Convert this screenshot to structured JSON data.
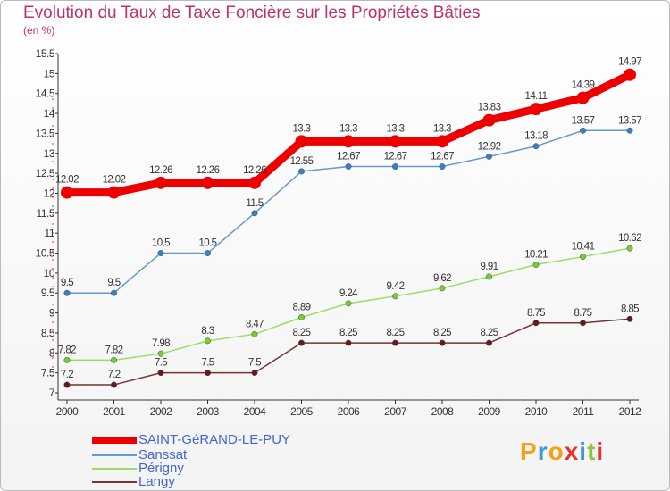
{
  "title": "Evolution du Taux de Taxe Foncière sur les Propriétés Bâties",
  "subtitle": "(en %)",
  "logo": {
    "text": "Proxiti",
    "letters": [
      "P",
      "r",
      "o",
      "x",
      "i",
      "t",
      "i"
    ],
    "colors": [
      "#f6a019",
      "#3a9ad9",
      "#f6a019",
      "#e8332a",
      "#3a9ad9",
      "#8bc53f",
      "#e8332a"
    ]
  },
  "chart_data": {
    "type": "line",
    "title": "Evolution du Taux de Taxe Foncière sur les Propriétés Bâties",
    "ylabel": "(en %)",
    "x": [
      "2000",
      "2001",
      "2002",
      "2003",
      "2004",
      "2005",
      "2006",
      "2007",
      "2008",
      "2009",
      "2010",
      "2011",
      "2012"
    ],
    "ylim": [
      7,
      15.5
    ],
    "yticks": [
      "7",
      "7.5",
      "8",
      "8.5",
      "9",
      "9.5",
      "10",
      "10.5",
      "11",
      "11.5",
      "12",
      "12.5",
      "13",
      "13.5",
      "14",
      "14.5",
      "15",
      "15.5"
    ],
    "grid": false,
    "legend_position": "bottom-left",
    "series": [
      {
        "name": "SAINT-GéRAND-LE-PUY",
        "color": "#ee0000",
        "highlight": true,
        "values": [
          12.02,
          12.02,
          12.26,
          12.26,
          12.26,
          13.3,
          13.3,
          13.3,
          13.3,
          13.83,
          14.11,
          14.39,
          14.97
        ],
        "labels": [
          "12.02",
          "12.02",
          "12.26",
          "12.26",
          "12.26",
          "13.3",
          "13.3",
          "13.3",
          "13.3",
          "13.83",
          "14.11",
          "14.39",
          "14.97"
        ]
      },
      {
        "name": "Sanssat",
        "color": "#6699cc",
        "point_color": "#3a7fc8",
        "values": [
          9.5,
          9.5,
          10.5,
          10.5,
          11.5,
          12.55,
          12.67,
          12.67,
          12.67,
          12.92,
          13.18,
          13.57,
          13.57
        ],
        "labels": [
          "9.5",
          "9.5",
          "10.5",
          "10.5",
          "11.5",
          "12.55",
          "12.67",
          "12.67",
          "12.67",
          "12.92",
          "13.18",
          "13.57",
          "13.57"
        ]
      },
      {
        "name": "Périgny",
        "color": "#99dd66",
        "point_color": "#77cc33",
        "values": [
          7.82,
          7.82,
          7.98,
          8.3,
          8.47,
          8.89,
          9.24,
          9.42,
          9.62,
          9.91,
          10.21,
          10.41,
          10.62
        ],
        "labels": [
          "7.82",
          "7.82",
          "7.98",
          "8.3",
          "8.47",
          "8.89",
          "9.24",
          "9.42",
          "9.62",
          "9.91",
          "10.21",
          "10.41",
          "10.62"
        ]
      },
      {
        "name": "Langy",
        "color": "#773333",
        "point_color": "#661a1a",
        "values": [
          7.2,
          7.2,
          7.5,
          7.5,
          7.5,
          8.25,
          8.25,
          8.25,
          8.25,
          8.25,
          8.75,
          8.75,
          8.85
        ],
        "labels": [
          "7.2",
          "7.2",
          "7.5",
          "7.5",
          "7.5",
          "8.25",
          "8.25",
          "8.25",
          "8.25",
          "8.25",
          "8.75",
          "8.75",
          "8.85"
        ]
      }
    ]
  }
}
